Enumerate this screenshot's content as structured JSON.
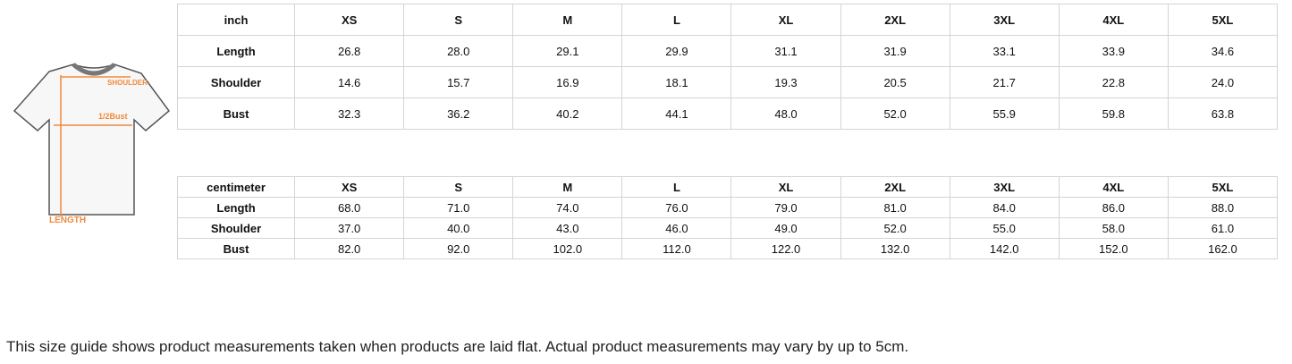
{
  "diagram": {
    "shoulder_label": "SHOULDER",
    "bust_label": "1/2Bust",
    "length_label": "LENGTH"
  },
  "inch_table": {
    "header": [
      "inch",
      "XS",
      "S",
      "M",
      "L",
      "XL",
      "2XL",
      "3XL",
      "4XL",
      "5XL"
    ],
    "rows": [
      [
        "Length",
        "26.8",
        "28.0",
        "29.1",
        "29.9",
        "31.1",
        "31.9",
        "33.1",
        "33.9",
        "34.6"
      ],
      [
        "Shoulder",
        "14.6",
        "15.7",
        "16.9",
        "18.1",
        "19.3",
        "20.5",
        "21.7",
        "22.8",
        "24.0"
      ],
      [
        "Bust",
        "32.3",
        "36.2",
        "40.2",
        "44.1",
        "48.0",
        "52.0",
        "55.9",
        "59.8",
        "63.8"
      ]
    ]
  },
  "cm_table": {
    "header": [
      "centimeter",
      "XS",
      "S",
      "M",
      "L",
      "XL",
      "2XL",
      "3XL",
      "4XL",
      "5XL"
    ],
    "rows": [
      [
        "Length",
        "68.0",
        "71.0",
        "74.0",
        "76.0",
        "79.0",
        "81.0",
        "84.0",
        "86.0",
        "88.0"
      ],
      [
        "Shoulder",
        "37.0",
        "40.0",
        "43.0",
        "46.0",
        "49.0",
        "52.0",
        "55.0",
        "58.0",
        "61.0"
      ],
      [
        "Bust",
        "82.0",
        "92.0",
        "102.0",
        "112.0",
        "122.0",
        "132.0",
        "142.0",
        "152.0",
        "162.0"
      ]
    ]
  },
  "note": "This size guide shows product measurements taken when products are laid flat. Actual product measurements may vary by up to 5cm."
}
